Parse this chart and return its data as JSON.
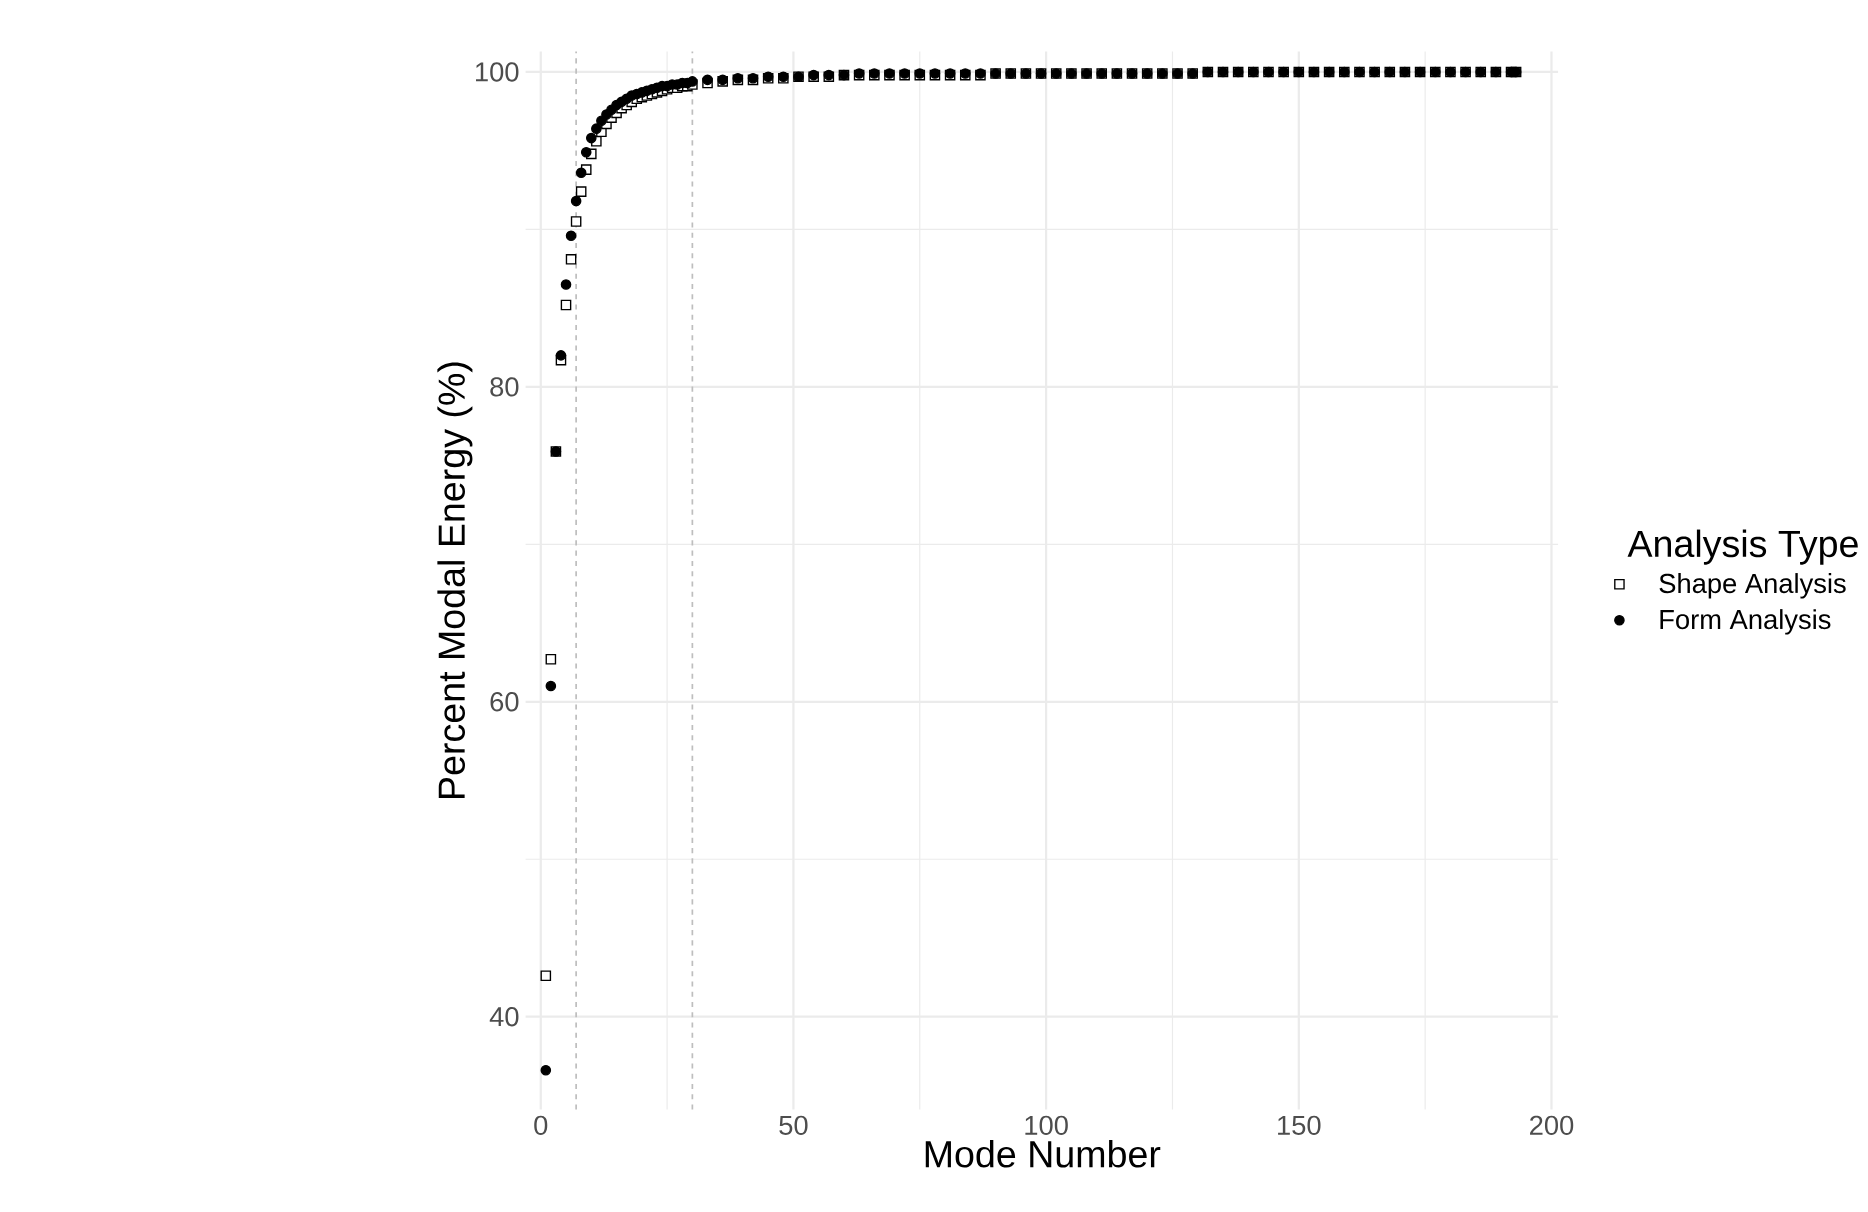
{
  "chart_data": {
    "type": "scatter",
    "xlabel": "Mode Number",
    "ylabel": "Percent Modal Energy (%)",
    "legend_title": "Analysis Type",
    "x": [
      1,
      2,
      3,
      4,
      5,
      6,
      7,
      8,
      9,
      10,
      11,
      12,
      13,
      14,
      15,
      16,
      17,
      18,
      19,
      20,
      21,
      22,
      23,
      24,
      25,
      26,
      27,
      28,
      29,
      30,
      33,
      36,
      39,
      42,
      45,
      48,
      51,
      54,
      57,
      60,
      63,
      66,
      69,
      72,
      75,
      78,
      81,
      84,
      87,
      90,
      93,
      96,
      99,
      102,
      105,
      108,
      111,
      114,
      117,
      120,
      123,
      126,
      129,
      132,
      135,
      138,
      141,
      144,
      147,
      150,
      153,
      156,
      159,
      162,
      165,
      168,
      171,
      174,
      177,
      180,
      183,
      186,
      189,
      192,
      193
    ],
    "series": [
      {
        "name": "Shape Analysis",
        "color": "#000000",
        "marker": "square",
        "values": [
          42.6,
          62.7,
          75.9,
          81.7,
          85.2,
          88.1,
          90.5,
          92.4,
          93.8,
          94.8,
          95.6,
          96.2,
          96.7,
          97.1,
          97.4,
          97.7,
          97.9,
          98.1,
          98.3,
          98.4,
          98.5,
          98.6,
          98.7,
          98.8,
          98.9,
          99.0,
          99.0,
          99.1,
          99.1,
          99.2,
          99.3,
          99.4,
          99.5,
          99.5,
          99.6,
          99.6,
          99.7,
          99.7,
          99.7,
          99.8,
          99.8,
          99.8,
          99.8,
          99.8,
          99.8,
          99.8,
          99.8,
          99.8,
          99.8,
          99.9,
          99.9,
          99.9,
          99.9,
          99.9,
          99.9,
          99.9,
          99.9,
          99.9,
          99.9,
          99.9,
          99.9,
          99.9,
          99.9,
          100.0,
          100.0,
          100.0,
          100.0,
          100.0,
          100.0,
          100.0,
          100.0,
          100.0,
          100.0,
          100.0,
          100.0,
          100.0,
          100.0,
          100.0,
          100.0,
          100.0,
          100.0,
          100.0,
          100.0,
          100.0,
          100.0
        ]
      },
      {
        "name": "Form Analysis",
        "color": "#000000",
        "marker": "circle",
        "values": [
          36.6,
          61.0,
          75.9,
          82.0,
          86.5,
          89.6,
          91.8,
          93.6,
          94.9,
          95.8,
          96.4,
          96.9,
          97.3,
          97.6,
          97.9,
          98.1,
          98.3,
          98.5,
          98.6,
          98.7,
          98.8,
          98.9,
          99.0,
          99.1,
          99.1,
          99.2,
          99.2,
          99.3,
          99.3,
          99.4,
          99.5,
          99.5,
          99.6,
          99.6,
          99.7,
          99.7,
          99.7,
          99.8,
          99.8,
          99.8,
          99.9,
          99.9,
          99.9,
          99.9,
          99.9,
          99.9,
          99.9,
          99.9,
          99.9,
          99.9,
          99.9,
          99.9,
          99.9,
          99.9,
          99.9,
          99.9,
          99.9,
          99.9,
          99.9,
          99.9,
          99.9,
          99.9,
          99.9,
          100.0,
          100.0,
          100.0,
          100.0,
          100.0,
          100.0,
          100.0,
          100.0,
          100.0,
          100.0,
          100.0,
          100.0,
          100.0,
          100.0,
          100.0,
          100.0,
          100.0,
          100.0,
          100.0,
          100.0,
          100.0,
          100.0
        ]
      }
    ],
    "xlim": [
      -3,
      201.3
    ],
    "ylim": [
      34.1,
      101.3
    ],
    "xticks": [
      0,
      50,
      100,
      150,
      200
    ],
    "yticks": [
      40,
      60,
      80,
      100
    ],
    "ref_lines": [
      {
        "axis": "x",
        "value": 7,
        "color": "#bebebe",
        "line_style": "dashed"
      },
      {
        "axis": "x",
        "value": 30,
        "color": "#bebebe",
        "line_style": "dashed"
      }
    ],
    "grid": true,
    "legend": "right"
  }
}
